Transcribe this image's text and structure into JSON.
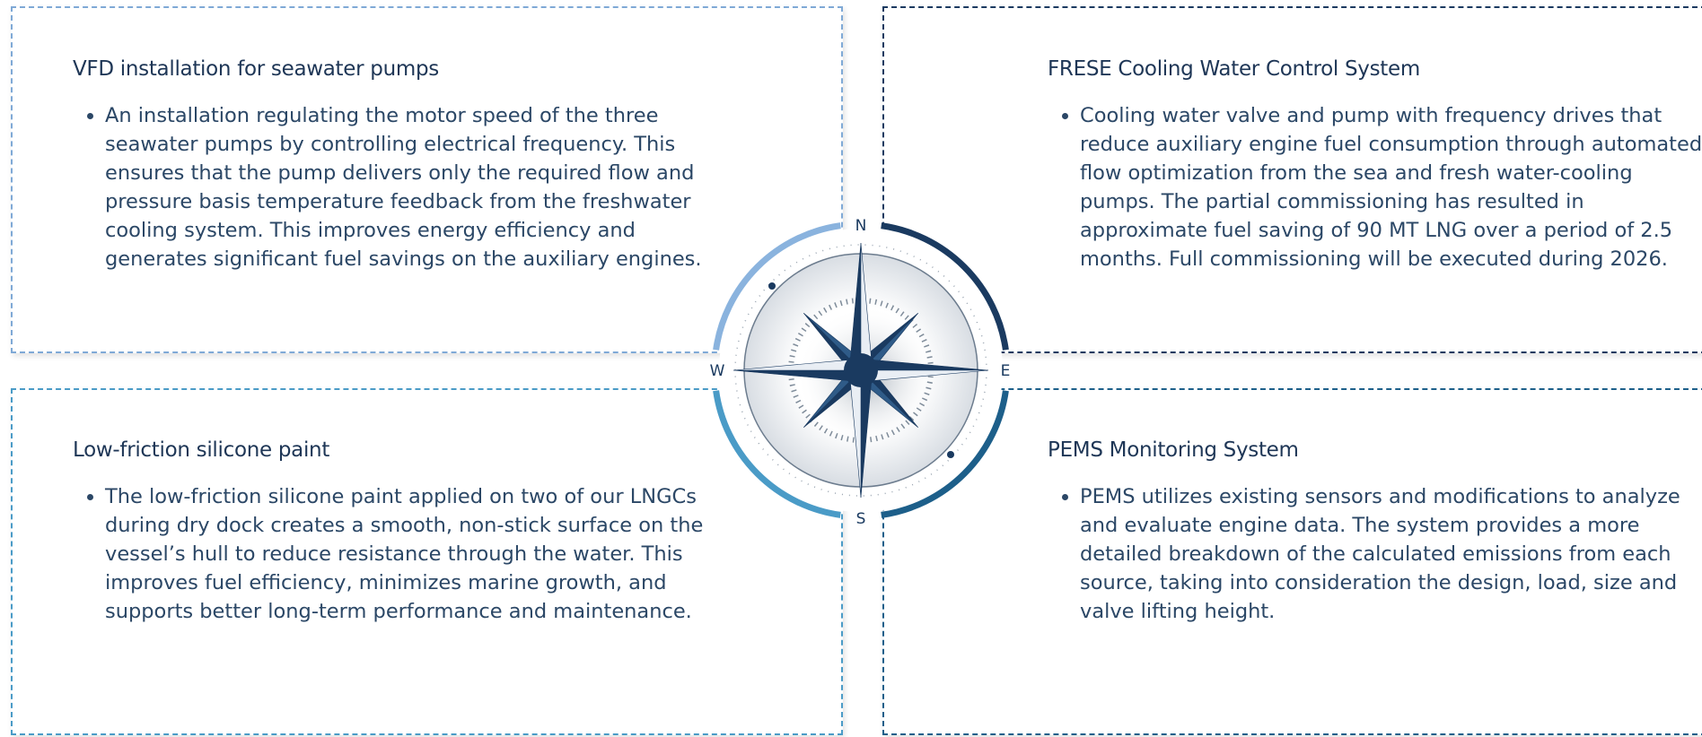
{
  "cards": [
    {
      "title": "VFD installation for seawater pumps",
      "bullets": [
        "An installation regulating the motor speed of the three seawater pumps by controlling electrical frequency. This ensures that the pump delivers only the required flow and pressure basis temperature feedback from the freshwater cooling system. This improves energy efficiency and generates significant fuel savings on the auxiliary engines."
      ]
    },
    {
      "title": "FRESE Cooling Water Control System",
      "bullets": [
        "Cooling water valve and pump with frequency drives that reduce auxiliary engine fuel consumption through automated flow optimization from the sea and fresh water-cooling pumps. The partial commissioning has resulted in approximate fuel saving of 90 MT LNG over a period of 2.5 months. Full commissioning will be executed during 2026."
      ]
    },
    {
      "title": "Low-friction silicone paint",
      "bullets": [
        "The low-friction silicone paint applied on two of our LNGCs during dry dock creates a smooth, non-stick surface on the vessel’s hull to reduce resistance through the water. This improves fuel efficiency, minimizes marine growth, and supports better long-term performance and maintenance."
      ]
    },
    {
      "title": "PEMS Monitoring System",
      "bullets": [
        "PEMS utilizes existing sensors and modifications to analyze and evaluate engine data. The system provides a more detailed breakdown of the calculated emissions from each source, taking into consideration the design, load, size and valve lifting height."
      ]
    }
  ],
  "compass": {
    "north": "N",
    "east": "E",
    "south": "S",
    "west": "W"
  }
}
